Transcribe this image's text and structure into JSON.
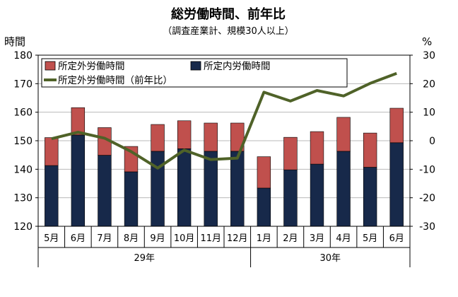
{
  "chart_data": {
    "type": "bar",
    "title": "総労働時間、前年比",
    "subtitle": "（調査産業計、規模30人以上）",
    "y_left_label": "時間",
    "y_right_label": "%",
    "y_left_lim": [
      120,
      180
    ],
    "y_left_ticks": [
      "120",
      "130",
      "140",
      "150",
      "160",
      "170",
      "180"
    ],
    "y_right_lim": [
      -30,
      30
    ],
    "y_right_ticks": [
      "-30",
      "-20",
      "-10",
      "0",
      "10",
      "20",
      "30"
    ],
    "categories": [
      "5月",
      "6月",
      "7月",
      "8月",
      "9月",
      "10月",
      "11月",
      "12月",
      "1月",
      "2月",
      "3月",
      "4月",
      "5月",
      "6月"
    ],
    "year_groups": [
      {
        "label": "29年",
        "start": 0,
        "end": 7
      },
      {
        "label": "30年",
        "start": 8,
        "end": 13
      }
    ],
    "grid": "horizontal",
    "legend_position": "top-left",
    "series": [
      {
        "name": "所定内労働時間",
        "type": "bar-stacked",
        "axis": "left",
        "color": "#17294a",
        "values": [
          141.3,
          152.0,
          144.9,
          139.1,
          146.3,
          147.2,
          146.3,
          146.3,
          133.4,
          139.8,
          141.8,
          146.3,
          140.7,
          149.3
        ]
      },
      {
        "name": "所定外労働時間",
        "type": "bar-stacked",
        "axis": "left",
        "color": "#c0504d",
        "values": [
          9.8,
          9.6,
          9.7,
          8.9,
          9.4,
          9.8,
          9.9,
          9.9,
          11.0,
          11.4,
          11.4,
          11.9,
          12.0,
          12.1
        ]
      },
      {
        "name": "所定外労働時間（前年比）",
        "type": "line",
        "axis": "right",
        "color": "#4f6228",
        "values": [
          0.7,
          3.0,
          0.9,
          -3.8,
          -9.6,
          -3.3,
          -6.6,
          -6.1,
          17.0,
          13.9,
          17.6,
          15.7,
          20.1,
          23.6
        ]
      }
    ]
  }
}
